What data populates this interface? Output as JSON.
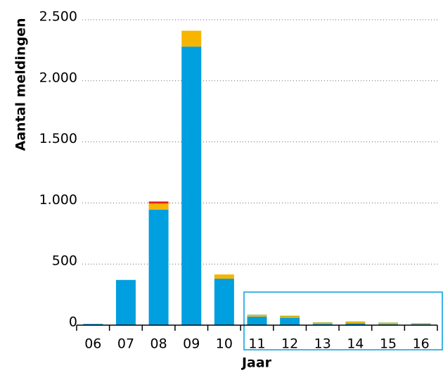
{
  "chart_data": {
    "type": "stacked_bar",
    "x_label": "Jaar",
    "y_label": "Aantal meldingen",
    "categories": [
      "06",
      "07",
      "08",
      "09",
      "10",
      "11",
      "12",
      "13",
      "14",
      "15",
      "16"
    ],
    "series": [
      {
        "color": "#009fdf",
        "values": [
          10,
          370,
          945,
          2280,
          380,
          70,
          60,
          10,
          15,
          8,
          8
        ]
      },
      {
        "color": "#f7b500",
        "values": [
          0,
          0,
          50,
          130,
          35,
          10,
          12,
          8,
          10,
          8,
          3
        ]
      },
      {
        "color": "#e2231a",
        "values": [
          0,
          0,
          17,
          0,
          0,
          0,
          0,
          0,
          0,
          0,
          0
        ]
      },
      {
        "color": "#8fae3a",
        "values": [
          0,
          0,
          0,
          0,
          0,
          5,
          5,
          5,
          5,
          5,
          4
        ]
      }
    ],
    "ylim": [
      0,
      2500
    ],
    "yticks": [
      0,
      500,
      {
        "value": 1000,
        "label": "1.000"
      },
      {
        "value": 1500,
        "label": "1.500"
      },
      {
        "value": 2000,
        "label": "2.000"
      },
      {
        "value": 2500,
        "label": "2.500"
      }
    ],
    "grid": true
  }
}
